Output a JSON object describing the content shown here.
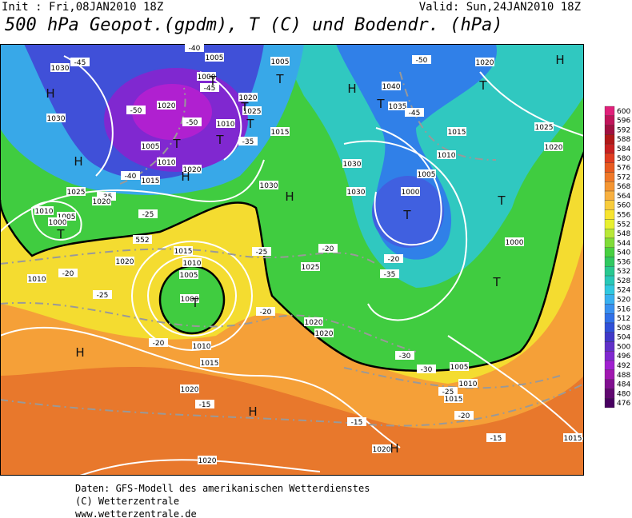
{
  "header": {
    "init": "Init : Fri,08JAN2010 18Z",
    "valid": "Valid: Sun,24JAN2010 18Z",
    "title": "500 hPa Geopot.(gpdm), T (C) und Bodendr. (hPa)"
  },
  "map": {
    "contour_labels": [
      "1030",
      "-45",
      "-40",
      "1005",
      "1000",
      "-45",
      "1020",
      "-50",
      "-50",
      "1010",
      "1025",
      "1020",
      "1015",
      "1005",
      "1030",
      "1005",
      "1010",
      "1015",
      "1020",
      "-40",
      "-35",
      "1025",
      "-35",
      "1020",
      "-25",
      "1010",
      "1005",
      "1000",
      "552",
      "1030",
      "1030",
      "1000",
      "1005",
      "1010",
      "1015",
      "1035",
      "-45",
      "1040",
      "-50",
      "1020",
      "1025",
      "1020",
      "1030",
      "1015",
      "1010",
      "1005",
      "1000",
      "1020",
      "1010",
      "-20",
      "-25",
      "-25",
      "-20",
      "-20",
      "-35",
      "1025",
      "1000",
      "-20",
      "1020",
      "1020",
      "-20",
      "1010",
      "1015",
      "1020",
      "-15",
      "-30",
      "-30",
      "1005",
      "1010",
      "-25",
      "1015",
      "-20",
      "-15",
      "1020",
      "-15",
      "1015",
      "1020"
    ],
    "centers": [
      "H",
      "H",
      "T",
      "T",
      "T",
      "T",
      "H",
      "T",
      "H",
      "H",
      "T",
      "T",
      "H",
      "T",
      "T",
      "T",
      "T",
      "H",
      "H",
      "H",
      "T",
      "T"
    ]
  },
  "colorbar": {
    "levels": [
      600,
      596,
      592,
      588,
      584,
      580,
      576,
      572,
      568,
      564,
      560,
      556,
      552,
      548,
      544,
      540,
      536,
      532,
      528,
      524,
      520,
      516,
      512,
      508,
      504,
      500,
      496,
      492,
      488,
      484,
      480,
      476
    ],
    "colors": [
      "#e0207a",
      "#c0145a",
      "#a01040",
      "#b01818",
      "#c82020",
      "#e03c20",
      "#e85a20",
      "#f07828",
      "#f59632",
      "#f8b040",
      "#f8cc3c",
      "#f8e430",
      "#e8f030",
      "#b8e838",
      "#80dc38",
      "#48d040",
      "#30c860",
      "#28c890",
      "#28c8b8",
      "#30c8e0",
      "#38b0f0",
      "#3890f0",
      "#3070e8",
      "#3050d8",
      "#4038c8",
      "#6030c8",
      "#8028d0",
      "#a020d0",
      "#a018b0",
      "#801090",
      "#600870",
      "#480060"
    ]
  },
  "footer": {
    "lines": [
      "Daten: GFS-Modell des amerikanischen Wetterdienstes",
      "(C) Wetterzentrale",
      "www.wetterzentrale.de"
    ]
  }
}
